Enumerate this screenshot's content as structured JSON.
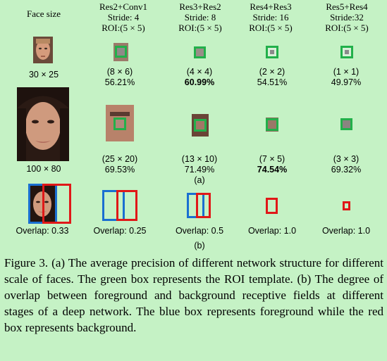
{
  "header": {
    "face_size": "Face size",
    "columns": [
      {
        "name": "Res2+Conv1",
        "stride": "Stride: 4",
        "roi": "ROI:(5 × 5)"
      },
      {
        "name": "Res3+Res2",
        "stride": "Stride: 8",
        "roi": "ROI:(5 × 5)"
      },
      {
        "name": "Res4+Res3",
        "stride": "Stride: 16",
        "roi": "ROI:(5 × 5)"
      },
      {
        "name": "Res5+Res4",
        "stride": "Stride:32",
        "roi": "ROI:(5 × 5)"
      }
    ]
  },
  "row_small": {
    "face_label": "30 × 25",
    "cells": [
      {
        "size": "(8 × 6)",
        "ap": "56.21%"
      },
      {
        "size": "(4 × 4)",
        "ap": "60.99%"
      },
      {
        "size": "(2 × 2)",
        "ap": "54.51%"
      },
      {
        "size": "(1 × 1)",
        "ap": "49.97%"
      }
    ]
  },
  "row_large": {
    "face_label": "100 × 80",
    "cells": [
      {
        "size": "(25 × 20)",
        "ap": "69.53%"
      },
      {
        "size": "(13 × 10)",
        "ap": "71.49%"
      },
      {
        "size": "(7 × 5)",
        "ap": "74.54%"
      },
      {
        "size": "(3 × 3)",
        "ap": "69.32%"
      }
    ]
  },
  "sub_a": "(a)",
  "overlap": {
    "labels": [
      "Overlap: 0.33",
      "Overlap: 0.25",
      "Overlap: 0.5",
      "Overlap: 1.0",
      "Overlap: 1.0"
    ]
  },
  "sub_b": "(b)",
  "caption": "Figure 3. (a) The average precision of different network structure for different scale of faces. The green box represents the ROI template. (b) The degree of overlap between foreground and background receptive fields at different stages of a deep network. The blue box represents foreground while the red box represents background.",
  "colors": {
    "foreground": "#1a6fd1",
    "background": "#e01818",
    "roi": "#22b04a"
  }
}
